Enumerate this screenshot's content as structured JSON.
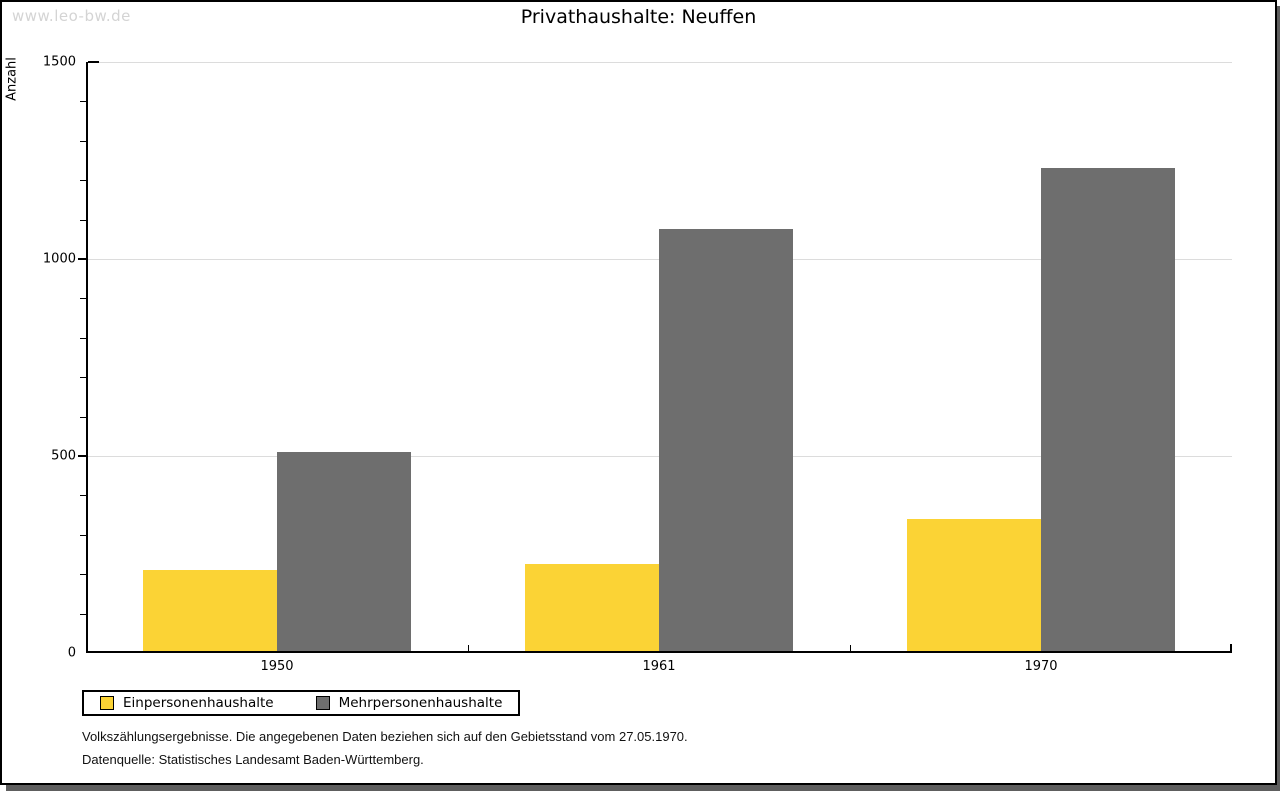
{
  "watermark": "www.leo-bw.de",
  "title": "Privathaushalte: Neuffen",
  "chart_data": {
    "type": "bar",
    "title": "Privathaushalte: Neuffen",
    "xlabel": "",
    "ylabel": "Anzahl",
    "categories": [
      "1950",
      "1961",
      "1970"
    ],
    "series": [
      {
        "name": "Einpersonenhaushalte",
        "color": "#fbd335",
        "values": [
          205,
          220,
          335
        ]
      },
      {
        "name": "Mehrpersonenhaushalte",
        "color": "#6e6e6e",
        "values": [
          505,
          1070,
          1225
        ]
      }
    ],
    "ylim": [
      0,
      1500
    ],
    "yticks": [
      0,
      500,
      1000,
      1500
    ],
    "minor_tick_step": 100,
    "grid": true,
    "legend_position": "bottom-left"
  },
  "legend": {
    "items": [
      {
        "label": "Einpersonenhaushalte",
        "color": "#fbd335"
      },
      {
        "label": "Mehrpersonenhaushalte",
        "color": "#6e6e6e"
      }
    ]
  },
  "footnotes": [
    "Volkszählungsergebnisse. Die angegebenen Daten beziehen sich auf den Gebietsstand vom 27.05.1970.",
    "Datenquelle: Statistisches Landesamt Baden-Württemberg."
  ],
  "colors": {
    "gridline": "#dcdcdc",
    "axis": "#000000",
    "watermark": "#d4d4d4",
    "window_shadow": "#5e5e5e",
    "background": "#ffffff"
  }
}
